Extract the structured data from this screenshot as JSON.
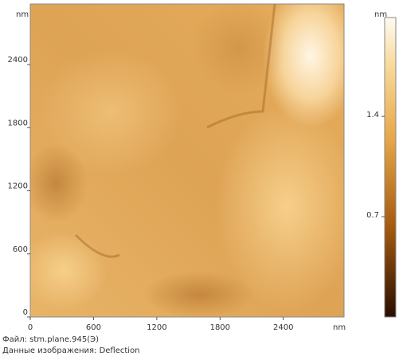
{
  "image": {
    "xlim": [
      0,
      2976
    ],
    "ylim": [
      0,
      2976
    ],
    "xticks": [
      0,
      600,
      1200,
      1800,
      2400
    ],
    "yticks": [
      0,
      600,
      1200,
      1800,
      2400
    ],
    "x_unit": "nm",
    "y_unit": "nm"
  },
  "colorbar": {
    "lim": [
      0,
      2.09
    ],
    "ticks": [
      0.7,
      1.4
    ],
    "unit": "nm"
  },
  "footer": {
    "file": "Файл: stm.plane.945(Э)",
    "data": "Данные изображения: Deflection"
  }
}
